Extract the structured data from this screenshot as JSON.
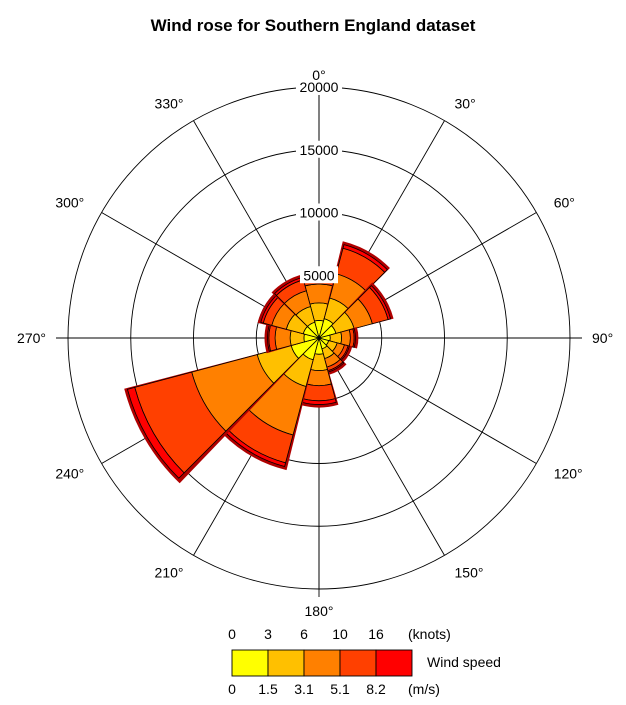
{
  "chart_data": {
    "type": "wind-rose",
    "title": "Wind rose for Southern England dataset",
    "direction_labels": [
      "0°",
      "30°",
      "60°",
      "90°",
      "120°",
      "150°",
      "180°",
      "210°",
      "240°",
      "270°",
      "300°",
      "330°"
    ],
    "radial_ticks": [
      "5000",
      "10000",
      "15000",
      "20000"
    ],
    "rmax": 20000,
    "sector_width_deg": 30,
    "speed_bins": [
      "0-3",
      "3-6",
      "6-10",
      "10-16",
      "16+"
    ],
    "colors": [
      "#ffff00",
      "#ffc000",
      "#ff8000",
      "#ff4000",
      "#ff0000"
    ],
    "sectors": [
      {
        "direction": 0,
        "cumulative": [
          1400,
          2800,
          4300,
          5000,
          5100
        ]
      },
      {
        "direction": 30,
        "cumulative": [
          1600,
          3300,
          5300,
          7400,
          7700
        ]
      },
      {
        "direction": 60,
        "cumulative": [
          1400,
          2900,
          4400,
          5700,
          5900
        ]
      },
      {
        "direction": 90,
        "cumulative": [
          900,
          1800,
          2500,
          2800,
          2900
        ]
      },
      {
        "direction": 120,
        "cumulative": [
          800,
          1500,
          2100,
          2400,
          2500
        ]
      },
      {
        "direction": 150,
        "cumulative": [
          900,
          1700,
          2400,
          2700,
          2800
        ]
      },
      {
        "direction": 180,
        "cumulative": [
          1300,
          2600,
          3800,
          5000,
          5300
        ]
      },
      {
        "direction": 210,
        "cumulative": [
          1800,
          4000,
          8000,
          10300,
          10600
        ]
      },
      {
        "direction": 240,
        "cumulative": [
          2300,
          5100,
          10500,
          15200,
          15800
        ]
      },
      {
        "direction": 270,
        "cumulative": [
          1200,
          2300,
          3500,
          4000,
          4100
        ]
      },
      {
        "direction": 300,
        "cumulative": [
          1300,
          2700,
          3900,
          4600,
          4800
        ]
      },
      {
        "direction": 330,
        "cumulative": [
          1300,
          2600,
          3900,
          4800,
          5000
        ]
      }
    ]
  },
  "legend": {
    "knots_ticks": [
      "0",
      "3",
      "6",
      "10",
      "16"
    ],
    "knots_unit": "(knots)",
    "ms_ticks": [
      "0",
      "1.5",
      "3.1",
      "5.1",
      "8.2"
    ],
    "ms_unit": "(m/s)",
    "label": "Wind speed"
  }
}
